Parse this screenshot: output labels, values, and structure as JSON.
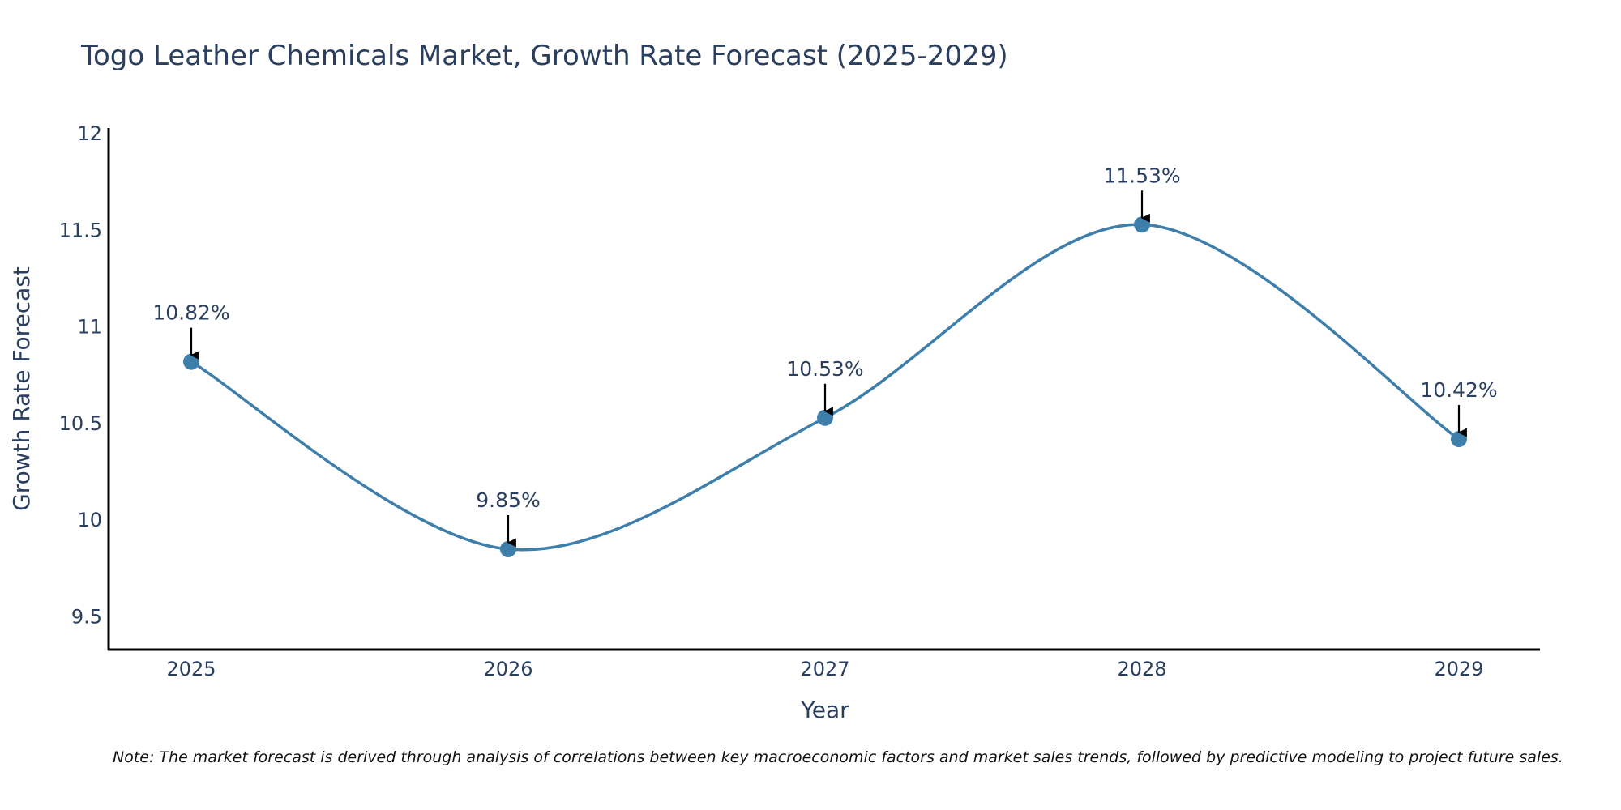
{
  "chart_data": {
    "type": "line",
    "title": "Togo Leather Chemicals Market, Growth Rate Forecast (2025-2029)",
    "xlabel": "Year",
    "ylabel": "Growth Rate Forecast",
    "categories": [
      "2025",
      "2026",
      "2027",
      "2028",
      "2029"
    ],
    "values": [
      10.82,
      9.85,
      10.53,
      11.53,
      10.42
    ],
    "data_labels": [
      "10.82%",
      "9.85%",
      "10.53%",
      "11.53%",
      "10.42%"
    ],
    "yticks": [
      "9.5",
      "10",
      "10.5",
      "11",
      "11.5",
      "12"
    ],
    "ylim": [
      9.33,
      12.03
    ],
    "grid": false,
    "line_shape": "spline",
    "line_color": "#3d7eaa",
    "marker_color": "#3d7eaa",
    "note": "Note: The market forecast is derived through analysis of correlations between key macroeconomic factors and market sales trends, followed by predictive modeling to project future sales."
  }
}
